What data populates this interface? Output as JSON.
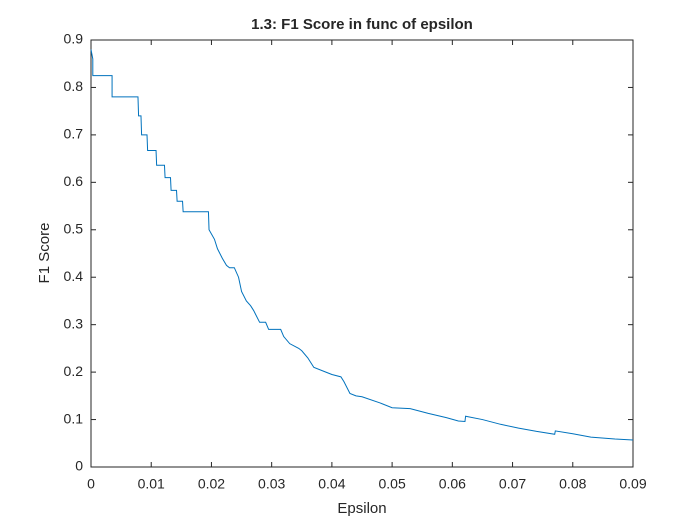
{
  "chart_data": {
    "type": "line",
    "title": "1.3: F1 Score in func of epsilon",
    "xlabel": "Epsilon",
    "ylabel": "F1 Score",
    "x": [
      0,
      0.0003,
      0.0003,
      0.0035,
      0.0035,
      0.0078,
      0.0079,
      0.0083,
      0.0084,
      0.0093,
      0.0094,
      0.0108,
      0.0109,
      0.0122,
      0.0123,
      0.0132,
      0.0133,
      0.0142,
      0.0143,
      0.0152,
      0.0153,
      0.0195,
      0.0196,
      0.0205,
      0.021,
      0.0218,
      0.0225,
      0.023,
      0.0238,
      0.0245,
      0.025,
      0.0258,
      0.0265,
      0.027,
      0.028,
      0.029,
      0.0295,
      0.0315,
      0.032,
      0.033,
      0.0345,
      0.035,
      0.036,
      0.037,
      0.039,
      0.04,
      0.0415,
      0.042,
      0.043,
      0.044,
      0.045,
      0.048,
      0.05,
      0.053,
      0.056,
      0.059,
      0.061,
      0.0621,
      0.0622,
      0.065,
      0.068,
      0.071,
      0.074,
      0.077,
      0.0771,
      0.08,
      0.083,
      0.087,
      0.09
    ],
    "series": [
      {
        "color": "#0072bd",
        "values": [
          0.88,
          0.86,
          0.825,
          0.825,
          0.78,
          0.78,
          0.74,
          0.74,
          0.7,
          0.7,
          0.667,
          0.667,
          0.636,
          0.636,
          0.61,
          0.61,
          0.583,
          0.583,
          0.56,
          0.56,
          0.538,
          0.538,
          0.5,
          0.48,
          0.46,
          0.44,
          0.425,
          0.42,
          0.42,
          0.4,
          0.37,
          0.35,
          0.34,
          0.33,
          0.305,
          0.305,
          0.29,
          0.29,
          0.275,
          0.26,
          0.25,
          0.245,
          0.23,
          0.21,
          0.2,
          0.195,
          0.19,
          0.18,
          0.155,
          0.15,
          0.148,
          0.135,
          0.125,
          0.123,
          0.113,
          0.104,
          0.097,
          0.096,
          0.107,
          0.1,
          0.09,
          0.082,
          0.075,
          0.069,
          0.076,
          0.07,
          0.063,
          0.059,
          0.057
        ]
      }
    ],
    "xlim": [
      0,
      0.09
    ],
    "xticks": [
      0,
      0.01,
      0.02,
      0.03,
      0.04,
      0.05,
      0.06,
      0.07,
      0.08,
      0.09
    ],
    "ylim": [
      0,
      0.9
    ],
    "yticks": [
      0,
      0.1,
      0.2,
      0.3,
      0.4,
      0.5,
      0.6,
      0.7,
      0.8,
      0.9
    ],
    "grid": false
  }
}
